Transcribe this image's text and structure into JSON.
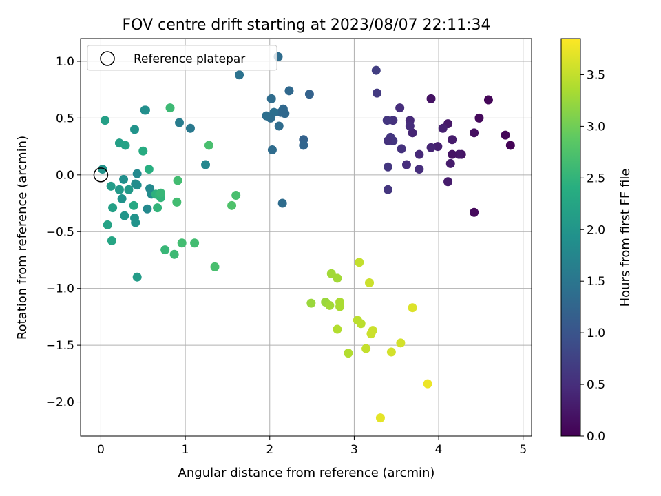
{
  "chart_data": {
    "type": "scatter",
    "title": "FOV centre drift starting at 2023/08/07 22:11:34",
    "xlabel": "Angular distance from reference (arcmin)",
    "ylabel": "Rotation from reference (arcmin)",
    "xlim": [
      -0.24,
      5.1
    ],
    "ylim": [
      -2.3,
      1.2
    ],
    "xticks": [
      0,
      1,
      2,
      3,
      4,
      5
    ],
    "yticks": [
      -2.0,
      -1.5,
      -1.0,
      -0.5,
      0.0,
      0.5,
      1.0
    ],
    "xtick_labels": [
      "0",
      "1",
      "2",
      "3",
      "4",
      "5"
    ],
    "ytick_labels": [
      "−2.0",
      "−1.5",
      "−1.0",
      "−0.5",
      "0.0",
      "0.5",
      "1.0"
    ],
    "grid": true,
    "legend": {
      "position": "top-left",
      "entries": [
        "Reference platepar"
      ]
    },
    "reference_point": {
      "x": 0,
      "y": 0
    },
    "colorbar": {
      "label": "Hours from first FF file",
      "colormap": "viridis",
      "range": [
        0,
        3.85
      ],
      "ticks": [
        0.0,
        0.5,
        1.0,
        1.5,
        2.0,
        2.5,
        3.0,
        3.5
      ],
      "tick_labels": [
        "0.0",
        "0.5",
        "1.0",
        "1.5",
        "2.0",
        "2.5",
        "3.0",
        "3.5"
      ]
    },
    "points": [
      {
        "x": 4.85,
        "y": 0.26,
        "c": 0.02
      },
      {
        "x": 4.79,
        "y": 0.35,
        "c": 0.05
      },
      {
        "x": 4.59,
        "y": 0.66,
        "c": 0.05
      },
      {
        "x": 4.48,
        "y": 0.5,
        "c": 0.1
      },
      {
        "x": 4.42,
        "y": 0.37,
        "c": 0.15
      },
      {
        "x": 4.42,
        "y": -0.33,
        "c": 0.1
      },
      {
        "x": 4.27,
        "y": 0.18,
        "c": 0.2
      },
      {
        "x": 4.24,
        "y": 0.18,
        "c": 0.25
      },
      {
        "x": 4.16,
        "y": 0.18,
        "c": 0.2
      },
      {
        "x": 4.16,
        "y": 0.31,
        "c": 0.3
      },
      {
        "x": 4.14,
        "y": 0.1,
        "c": 0.3
      },
      {
        "x": 4.11,
        "y": 0.45,
        "c": 0.25
      },
      {
        "x": 4.11,
        "y": -0.06,
        "c": 0.3
      },
      {
        "x": 4.05,
        "y": 0.41,
        "c": 0.35
      },
      {
        "x": 3.99,
        "y": 0.25,
        "c": 0.35
      },
      {
        "x": 3.91,
        "y": 0.67,
        "c": 0.2
      },
      {
        "x": 3.91,
        "y": 0.24,
        "c": 0.4
      },
      {
        "x": 3.77,
        "y": 0.18,
        "c": 0.45
      },
      {
        "x": 3.77,
        "y": 0.05,
        "c": 0.5
      },
      {
        "x": 3.69,
        "y": 0.37,
        "c": 0.4
      },
      {
        "x": 3.66,
        "y": 0.48,
        "c": 0.45
      },
      {
        "x": 3.66,
        "y": 0.43,
        "c": 0.5
      },
      {
        "x": 3.62,
        "y": 0.09,
        "c": 0.5
      },
      {
        "x": 3.56,
        "y": 0.23,
        "c": 0.55
      },
      {
        "x": 3.54,
        "y": 0.59,
        "c": 0.5
      },
      {
        "x": 3.46,
        "y": 0.48,
        "c": 0.55
      },
      {
        "x": 3.46,
        "y": 0.3,
        "c": 0.6
      },
      {
        "x": 3.43,
        "y": 0.33,
        "c": 0.6
      },
      {
        "x": 3.4,
        "y": 0.3,
        "c": 0.55
      },
      {
        "x": 3.4,
        "y": 0.07,
        "c": 0.6
      },
      {
        "x": 3.4,
        "y": -0.13,
        "c": 0.6
      },
      {
        "x": 3.39,
        "y": 0.48,
        "c": 0.6
      },
      {
        "x": 3.27,
        "y": 0.72,
        "c": 0.65
      },
      {
        "x": 3.26,
        "y": 0.92,
        "c": 0.7
      },
      {
        "x": 2.47,
        "y": 0.71,
        "c": 1.2
      },
      {
        "x": 2.4,
        "y": 0.31,
        "c": 1.2
      },
      {
        "x": 2.4,
        "y": 0.26,
        "c": 1.25
      },
      {
        "x": 2.23,
        "y": 0.74,
        "c": 1.3
      },
      {
        "x": 2.18,
        "y": 0.54,
        "c": 1.3
      },
      {
        "x": 2.16,
        "y": 0.58,
        "c": 1.3
      },
      {
        "x": 2.15,
        "y": -0.25,
        "c": 1.35
      },
      {
        "x": 2.13,
        "y": 0.55,
        "c": 1.3
      },
      {
        "x": 2.11,
        "y": 0.43,
        "c": 1.35
      },
      {
        "x": 2.1,
        "y": 1.04,
        "c": 1.35
      },
      {
        "x": 2.05,
        "y": 0.55,
        "c": 1.4
      },
      {
        "x": 2.03,
        "y": 0.22,
        "c": 1.35
      },
      {
        "x": 2.02,
        "y": 0.67,
        "c": 1.35
      },
      {
        "x": 2.01,
        "y": 0.5,
        "c": 1.35
      },
      {
        "x": 1.96,
        "y": 0.52,
        "c": 1.4
      },
      {
        "x": 1.64,
        "y": 0.88,
        "c": 1.45
      },
      {
        "x": 1.06,
        "y": 0.41,
        "c": 1.55
      },
      {
        "x": 0.93,
        "y": 0.46,
        "c": 1.6
      },
      {
        "x": 1.24,
        "y": 0.09,
        "c": 1.75
      },
      {
        "x": 0.52,
        "y": 0.57,
        "c": 1.85
      },
      {
        "x": 0.53,
        "y": 0.57,
        "c": 1.9
      },
      {
        "x": 0.4,
        "y": 0.4,
        "c": 1.95
      },
      {
        "x": 0.43,
        "y": 0.01,
        "c": 1.8
      },
      {
        "x": 0.55,
        "y": -0.3,
        "c": 1.8
      },
      {
        "x": 0.58,
        "y": -0.12,
        "c": 1.8
      },
      {
        "x": 0.6,
        "y": -0.17,
        "c": 1.85
      },
      {
        "x": 0.43,
        "y": -0.09,
        "c": 1.9
      },
      {
        "x": 0.41,
        "y": -0.08,
        "c": 1.85
      },
      {
        "x": 0.27,
        "y": -0.04,
        "c": 1.9
      },
      {
        "x": 0.25,
        "y": -0.21,
        "c": 1.95
      },
      {
        "x": 0.28,
        "y": -0.36,
        "c": 2.0
      },
      {
        "x": 0.4,
        "y": -0.38,
        "c": 1.95
      },
      {
        "x": 0.41,
        "y": -0.42,
        "c": 1.95
      },
      {
        "x": 0.33,
        "y": -0.13,
        "c": 2.05
      },
      {
        "x": 0.22,
        "y": -0.13,
        "c": 2.05
      },
      {
        "x": 0.12,
        "y": -0.1,
        "c": 2.1
      },
      {
        "x": 0.14,
        "y": -0.29,
        "c": 2.15
      },
      {
        "x": 0.08,
        "y": -0.44,
        "c": 2.2
      },
      {
        "x": 0.13,
        "y": -0.58,
        "c": 2.25
      },
      {
        "x": 0.02,
        "y": 0.05,
        "c": 1.95
      },
      {
        "x": 0.05,
        "y": 0.48,
        "c": 2.15
      },
      {
        "x": 0.22,
        "y": 0.28,
        "c": 2.15
      },
      {
        "x": 0.29,
        "y": 0.26,
        "c": 2.2
      },
      {
        "x": 0.43,
        "y": -0.9,
        "c": 2.1
      },
      {
        "x": 0.39,
        "y": -0.27,
        "c": 2.3
      },
      {
        "x": 0.5,
        "y": 0.21,
        "c": 2.35
      },
      {
        "x": 0.57,
        "y": 0.05,
        "c": 2.4
      },
      {
        "x": 0.65,
        "y": -0.17,
        "c": 2.45
      },
      {
        "x": 0.69,
        "y": -0.18,
        "c": 2.5
      },
      {
        "x": 0.71,
        "y": -0.2,
        "c": 2.5
      },
      {
        "x": 0.71,
        "y": -0.16,
        "c": 2.55
      },
      {
        "x": 0.67,
        "y": -0.29,
        "c": 2.5
      },
      {
        "x": 0.76,
        "y": -0.66,
        "c": 2.55
      },
      {
        "x": 0.82,
        "y": 0.59,
        "c": 2.6
      },
      {
        "x": 0.87,
        "y": -0.7,
        "c": 2.6
      },
      {
        "x": 0.91,
        "y": -0.05,
        "c": 2.65
      },
      {
        "x": 0.9,
        "y": -0.24,
        "c": 2.65
      },
      {
        "x": 0.96,
        "y": -0.6,
        "c": 2.65
      },
      {
        "x": 1.11,
        "y": -0.6,
        "c": 2.65
      },
      {
        "x": 1.28,
        "y": 0.26,
        "c": 2.7
      },
      {
        "x": 1.35,
        "y": -0.81,
        "c": 2.7
      },
      {
        "x": 1.55,
        "y": -0.27,
        "c": 2.75
      },
      {
        "x": 1.6,
        "y": -0.18,
        "c": 2.7
      },
      {
        "x": 2.49,
        "y": -1.13,
        "c": 3.25
      },
      {
        "x": 2.66,
        "y": -1.12,
        "c": 3.25
      },
      {
        "x": 2.71,
        "y": -1.15,
        "c": 3.3
      },
      {
        "x": 2.73,
        "y": -0.87,
        "c": 3.3
      },
      {
        "x": 2.8,
        "y": -0.91,
        "c": 3.3
      },
      {
        "x": 2.83,
        "y": -1.12,
        "c": 3.35
      },
      {
        "x": 2.83,
        "y": -1.16,
        "c": 3.35
      },
      {
        "x": 2.8,
        "y": -1.36,
        "c": 3.4
      },
      {
        "x": 2.93,
        "y": -1.57,
        "c": 3.4
      },
      {
        "x": 3.04,
        "y": -1.28,
        "c": 3.45
      },
      {
        "x": 3.08,
        "y": -1.31,
        "c": 3.45
      },
      {
        "x": 3.06,
        "y": -0.77,
        "c": 3.5
      },
      {
        "x": 3.14,
        "y": -1.53,
        "c": 3.5
      },
      {
        "x": 3.18,
        "y": -0.95,
        "c": 3.55
      },
      {
        "x": 3.22,
        "y": -1.37,
        "c": 3.55
      },
      {
        "x": 3.2,
        "y": -1.4,
        "c": 3.55
      },
      {
        "x": 3.31,
        "y": -2.14,
        "c": 3.7
      },
      {
        "x": 3.44,
        "y": -1.56,
        "c": 3.6
      },
      {
        "x": 3.55,
        "y": -1.48,
        "c": 3.6
      },
      {
        "x": 3.69,
        "y": -1.17,
        "c": 3.65
      },
      {
        "x": 3.87,
        "y": -1.84,
        "c": 3.75
      }
    ]
  }
}
